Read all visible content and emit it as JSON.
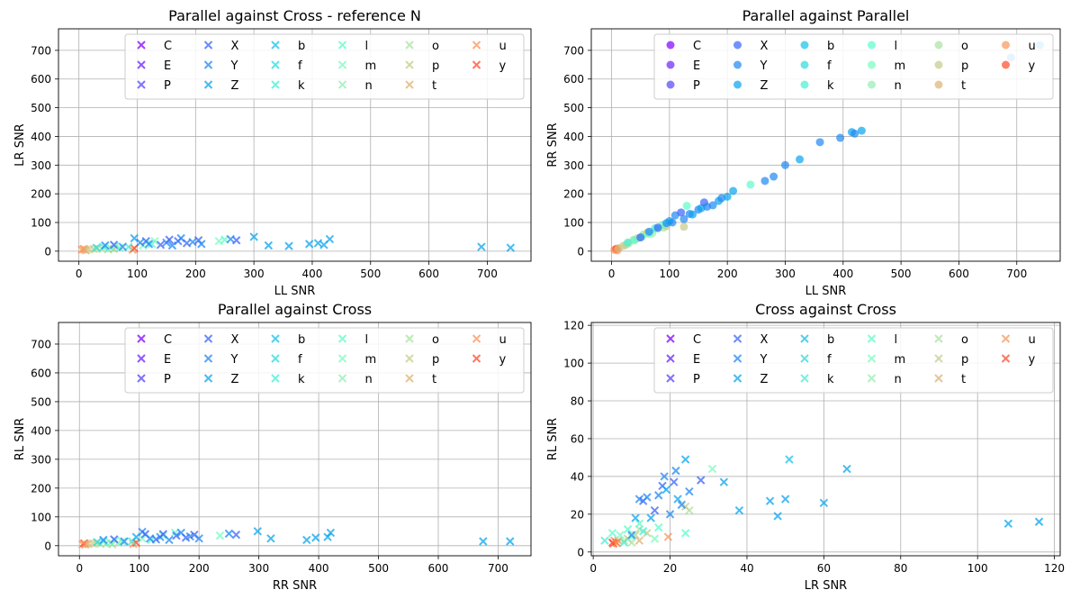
{
  "series_names": [
    "C",
    "E",
    "P",
    "X",
    "Y",
    "Z",
    "b",
    "f",
    "k",
    "l",
    "m",
    "n",
    "o",
    "p",
    "t",
    "u",
    "y"
  ],
  "series_colors": [
    "#8000ff",
    "#6a23fe",
    "#5246fc",
    "#3b64f9",
    "#2088f4",
    "#08a4ee",
    "#16c2e7",
    "#2edade",
    "#46eed5",
    "#5afcca",
    "#78fcbf",
    "#92eeb1",
    "#a9e29f",
    "#c6cb8a",
    "#deb274",
    "#f9955a",
    "#ff4a2a",
    "#ff0000"
  ],
  "chart_data": [
    {
      "type": "scatter",
      "title": "Parallel against Cross - reference N",
      "xlabel": "LL SNR",
      "ylabel": "LR SNR",
      "xlim": [
        -35,
        775
      ],
      "ylim": [
        -35,
        775
      ],
      "xticks": [
        0,
        100,
        200,
        300,
        400,
        500,
        600,
        700
      ],
      "yticks": [
        0,
        100,
        200,
        300,
        400,
        500,
        600,
        700
      ],
      "marker": "x",
      "grid": true,
      "legend": "top-right, 6 columns",
      "points": [
        [
          5,
          5,
          15
        ],
        [
          8,
          8,
          15
        ],
        [
          10,
          6,
          15
        ],
        [
          12,
          3,
          14
        ],
        [
          18,
          6,
          13
        ],
        [
          25,
          8,
          13
        ],
        [
          32,
          10,
          12
        ],
        [
          40,
          8,
          12
        ],
        [
          50,
          6,
          12
        ],
        [
          60,
          8,
          14
        ],
        [
          92,
          5,
          15
        ],
        [
          95,
          10,
          16
        ],
        [
          30,
          12,
          7
        ],
        [
          42,
          15,
          8
        ],
        [
          55,
          10,
          9
        ],
        [
          62,
          18,
          10
        ],
        [
          70,
          12,
          9
        ],
        [
          85,
          15,
          8
        ],
        [
          110,
          20,
          10
        ],
        [
          125,
          25,
          9
        ],
        [
          130,
          35,
          10
        ],
        [
          240,
          35,
          10
        ],
        [
          250,
          40,
          9
        ],
        [
          45,
          20,
          4
        ],
        [
          60,
          22,
          3
        ],
        [
          75,
          15,
          4
        ],
        [
          95,
          45,
          5
        ],
        [
          105,
          30,
          4
        ],
        [
          115,
          35,
          3
        ],
        [
          120,
          25,
          4
        ],
        [
          140,
          22,
          3
        ],
        [
          150,
          30,
          4
        ],
        [
          155,
          40,
          3
        ],
        [
          160,
          20,
          4
        ],
        [
          170,
          35,
          3
        ],
        [
          175,
          45,
          4
        ],
        [
          185,
          28,
          3
        ],
        [
          195,
          32,
          4
        ],
        [
          205,
          38,
          3
        ],
        [
          210,
          25,
          4
        ],
        [
          260,
          42,
          4
        ],
        [
          270,
          38,
          3
        ],
        [
          300,
          50,
          5
        ],
        [
          325,
          20,
          5
        ],
        [
          360,
          18,
          5
        ],
        [
          395,
          25,
          5
        ],
        [
          410,
          28,
          5
        ],
        [
          420,
          22,
          5
        ],
        [
          430,
          42,
          5
        ],
        [
          690,
          15,
          5
        ],
        [
          740,
          12,
          5
        ]
      ]
    },
    {
      "type": "scatter",
      "title": "Parallel against Parallel",
      "xlabel": "LL SNR",
      "ylabel": "RR SNR",
      "xlim": [
        -35,
        775
      ],
      "ylim": [
        -35,
        775
      ],
      "xticks": [
        0,
        100,
        200,
        300,
        400,
        500,
        600,
        700
      ],
      "yticks": [
        0,
        100,
        200,
        300,
        400,
        500,
        600,
        700
      ],
      "marker": "o",
      "grid": true,
      "legend": "top-right, 6 columns",
      "points": [
        [
          5,
          5,
          15
        ],
        [
          8,
          8,
          16
        ],
        [
          10,
          3,
          15
        ],
        [
          12,
          10,
          14
        ],
        [
          20,
          18,
          13
        ],
        [
          25,
          22,
          13
        ],
        [
          30,
          28,
          12
        ],
        [
          38,
          40,
          12
        ],
        [
          45,
          45,
          13
        ],
        [
          55,
          58,
          12
        ],
        [
          62,
          65,
          13
        ],
        [
          70,
          62,
          11
        ],
        [
          80,
          78,
          11
        ],
        [
          90,
          82,
          12
        ],
        [
          95,
          88,
          13
        ],
        [
          125,
          85,
          13
        ],
        [
          28,
          30,
          8
        ],
        [
          40,
          38,
          9
        ],
        [
          52,
          50,
          9
        ],
        [
          64,
          60,
          10
        ],
        [
          75,
          80,
          8
        ],
        [
          88,
          92,
          9
        ],
        [
          130,
          158,
          9
        ],
        [
          240,
          232,
          9
        ],
        [
          50,
          48,
          3
        ],
        [
          65,
          68,
          4
        ],
        [
          80,
          82,
          3
        ],
        [
          95,
          98,
          4
        ],
        [
          100,
          105,
          5
        ],
        [
          105,
          100,
          4
        ],
        [
          110,
          125,
          4
        ],
        [
          120,
          135,
          3
        ],
        [
          125,
          112,
          4
        ],
        [
          135,
          130,
          4
        ],
        [
          140,
          128,
          5
        ],
        [
          150,
          145,
          4
        ],
        [
          155,
          150,
          5
        ],
        [
          160,
          170,
          3
        ],
        [
          165,
          155,
          4
        ],
        [
          175,
          160,
          4
        ],
        [
          185,
          175,
          5
        ],
        [
          190,
          185,
          4
        ],
        [
          200,
          190,
          5
        ],
        [
          210,
          210,
          5
        ],
        [
          265,
          245,
          4
        ],
        [
          280,
          260,
          4
        ],
        [
          300,
          300,
          4
        ],
        [
          325,
          320,
          5
        ],
        [
          360,
          380,
          4
        ],
        [
          395,
          395,
          4
        ],
        [
          415,
          415,
          5
        ],
        [
          420,
          410,
          4
        ],
        [
          432,
          420,
          5
        ],
        [
          690,
          675,
          4
        ],
        [
          740,
          718,
          5
        ]
      ]
    },
    {
      "type": "scatter",
      "title": "Parallel against Cross",
      "xlabel": "RR SNR",
      "ylabel": "RL SNR",
      "xlim": [
        -35,
        755
      ],
      "ylim": [
        -35,
        775
      ],
      "xticks": [
        0,
        100,
        200,
        300,
        400,
        500,
        600,
        700
      ],
      "yticks": [
        0,
        100,
        200,
        300,
        400,
        500,
        600,
        700
      ],
      "marker": "x",
      "grid": true,
      "legend": "top-right, 6 columns",
      "points": [
        [
          5,
          5,
          15
        ],
        [
          8,
          8,
          16
        ],
        [
          10,
          4,
          15
        ],
        [
          15,
          6,
          14
        ],
        [
          22,
          8,
          13
        ],
        [
          28,
          10,
          13
        ],
        [
          35,
          6,
          12
        ],
        [
          45,
          8,
          12
        ],
        [
          55,
          5,
          13
        ],
        [
          65,
          10,
          12
        ],
        [
          90,
          6,
          15
        ],
        [
          95,
          10,
          16
        ],
        [
          30,
          12,
          7
        ],
        [
          40,
          15,
          8
        ],
        [
          52,
          10,
          9
        ],
        [
          60,
          18,
          10
        ],
        [
          72,
          14,
          9
        ],
        [
          88,
          15,
          8
        ],
        [
          105,
          25,
          10
        ],
        [
          120,
          20,
          9
        ],
        [
          140,
          35,
          10
        ],
        [
          235,
          35,
          10
        ],
        [
          160,
          45,
          9
        ],
        [
          40,
          20,
          4
        ],
        [
          58,
          22,
          3
        ],
        [
          75,
          15,
          4
        ],
        [
          95,
          30,
          5
        ],
        [
          105,
          48,
          4
        ],
        [
          110,
          40,
          3
        ],
        [
          118,
          25,
          4
        ],
        [
          128,
          22,
          3
        ],
        [
          135,
          30,
          4
        ],
        [
          140,
          40,
          3
        ],
        [
          150,
          20,
          4
        ],
        [
          162,
          35,
          3
        ],
        [
          170,
          45,
          4
        ],
        [
          178,
          28,
          3
        ],
        [
          185,
          32,
          4
        ],
        [
          192,
          38,
          3
        ],
        [
          200,
          25,
          4
        ],
        [
          250,
          42,
          4
        ],
        [
          262,
          38,
          3
        ],
        [
          298,
          50,
          5
        ],
        [
          320,
          25,
          5
        ],
        [
          380,
          20,
          5
        ],
        [
          395,
          28,
          5
        ],
        [
          415,
          30,
          5
        ],
        [
          420,
          45,
          5
        ],
        [
          675,
          15,
          5
        ],
        [
          720,
          15,
          5
        ]
      ]
    },
    {
      "type": "scatter",
      "title": "Cross against Cross",
      "xlabel": "LR SNR",
      "ylabel": "RL SNR",
      "xlim": [
        -0.5,
        121.5
      ],
      "ylim": [
        -2,
        121.5
      ],
      "xticks": [
        0,
        20,
        40,
        60,
        80,
        100,
        120
      ],
      "yticks": [
        0,
        20,
        40,
        60,
        80,
        100,
        120
      ],
      "marker": "x",
      "grid": true,
      "legend": "top-right, 6 columns",
      "points": [
        [
          5,
          5,
          16
        ],
        [
          5.5,
          6,
          15
        ],
        [
          6,
          5,
          16
        ],
        [
          6.5,
          6,
          15
        ],
        [
          5.2,
          4.5,
          16
        ],
        [
          6.2,
          4.6,
          15
        ],
        [
          19.5,
          8,
          15
        ],
        [
          12,
          6,
          14
        ],
        [
          8,
          6,
          12
        ],
        [
          9,
          7,
          13
        ],
        [
          10,
          5,
          12
        ],
        [
          11,
          9,
          13
        ],
        [
          12,
          12,
          12
        ],
        [
          14,
          10,
          13
        ],
        [
          25,
          22,
          12
        ],
        [
          24,
          24,
          13
        ],
        [
          3,
          6,
          8
        ],
        [
          5,
          10,
          9
        ],
        [
          7,
          9,
          10
        ],
        [
          8,
          5,
          8
        ],
        [
          9,
          12,
          9
        ],
        [
          10,
          8,
          10
        ],
        [
          12,
          15,
          9
        ],
        [
          13,
          11,
          8
        ],
        [
          16,
          7,
          10
        ],
        [
          17,
          13,
          9
        ],
        [
          24,
          10,
          9
        ],
        [
          31,
          44,
          10
        ],
        [
          10,
          9,
          4
        ],
        [
          11,
          18,
          5
        ],
        [
          12,
          28,
          4
        ],
        [
          13,
          27,
          3
        ],
        [
          14,
          29,
          4
        ],
        [
          15,
          18,
          5
        ],
        [
          16,
          22,
          3
        ],
        [
          17,
          30,
          4
        ],
        [
          18,
          35,
          3
        ],
        [
          18.5,
          40,
          4
        ],
        [
          19,
          33,
          5
        ],
        [
          20,
          20,
          4
        ],
        [
          21,
          37,
          3
        ],
        [
          21.5,
          43,
          4
        ],
        [
          22,
          28,
          5
        ],
        [
          23,
          25,
          4
        ],
        [
          24,
          49,
          5
        ],
        [
          25,
          32,
          4
        ],
        [
          28,
          38,
          3
        ],
        [
          34,
          37,
          5
        ],
        [
          38,
          22,
          5
        ],
        [
          46,
          27,
          5
        ],
        [
          48,
          19,
          5
        ],
        [
          50,
          28,
          5
        ],
        [
          51,
          49,
          6
        ],
        [
          60,
          26,
          5
        ],
        [
          66,
          44,
          5
        ],
        [
          108,
          15,
          5
        ],
        [
          116,
          16,
          5
        ]
      ]
    }
  ]
}
